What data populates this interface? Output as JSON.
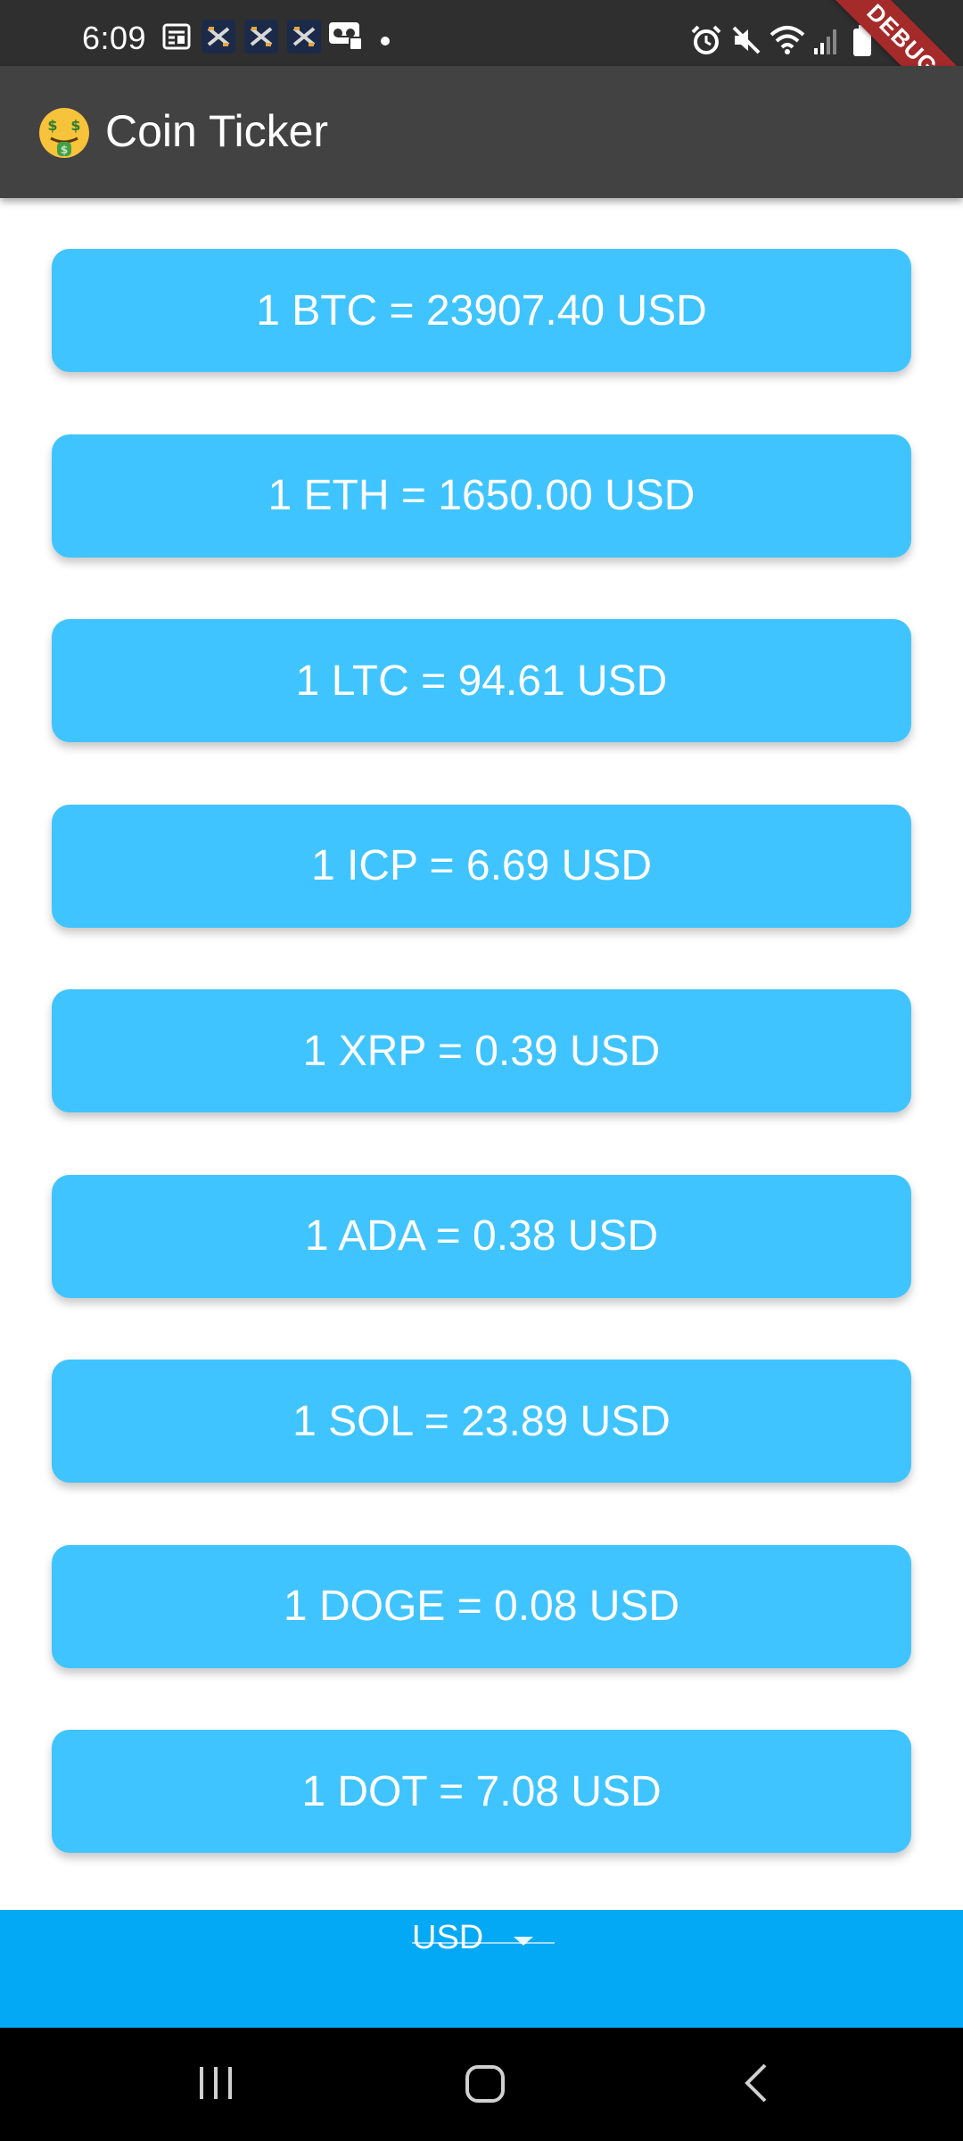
{
  "status_bar": {
    "time": "6:09",
    "debug_label": "DEBUG",
    "left_icons": [
      "news-icon",
      "app-icon",
      "app-icon",
      "app-icon",
      "voicemail-icon",
      "dot-icon"
    ],
    "right_icons": [
      "alarm-icon",
      "mute-icon",
      "wifi-icon",
      "signal-icon",
      "battery-icon"
    ]
  },
  "app_bar": {
    "emoji_icon": "money-mouth-face-icon",
    "title": "Coin Ticker",
    "color": "#424242"
  },
  "rates": [
    {
      "text": "1 BTC = 23907.40 USD"
    },
    {
      "text": "1 ETH = 1650.00 USD"
    },
    {
      "text": "1 LTC = 94.61 USD"
    },
    {
      "text": "1 ICP = 6.69 USD"
    },
    {
      "text": "1 XRP = 0.39 USD"
    },
    {
      "text": "1 ADA = 0.38 USD"
    },
    {
      "text": "1 SOL = 23.89 USD"
    },
    {
      "text": "1 DOGE = 0.08 USD"
    },
    {
      "text": "1 DOT = 7.08 USD"
    }
  ],
  "card_color": "#40c4ff",
  "picker": {
    "selected": "USD",
    "icon": "dropdown-arrow-icon",
    "color": "#03a9f4"
  },
  "nav_bar": {
    "icons": [
      "recent-apps-icon",
      "home-icon",
      "back-icon"
    ]
  }
}
